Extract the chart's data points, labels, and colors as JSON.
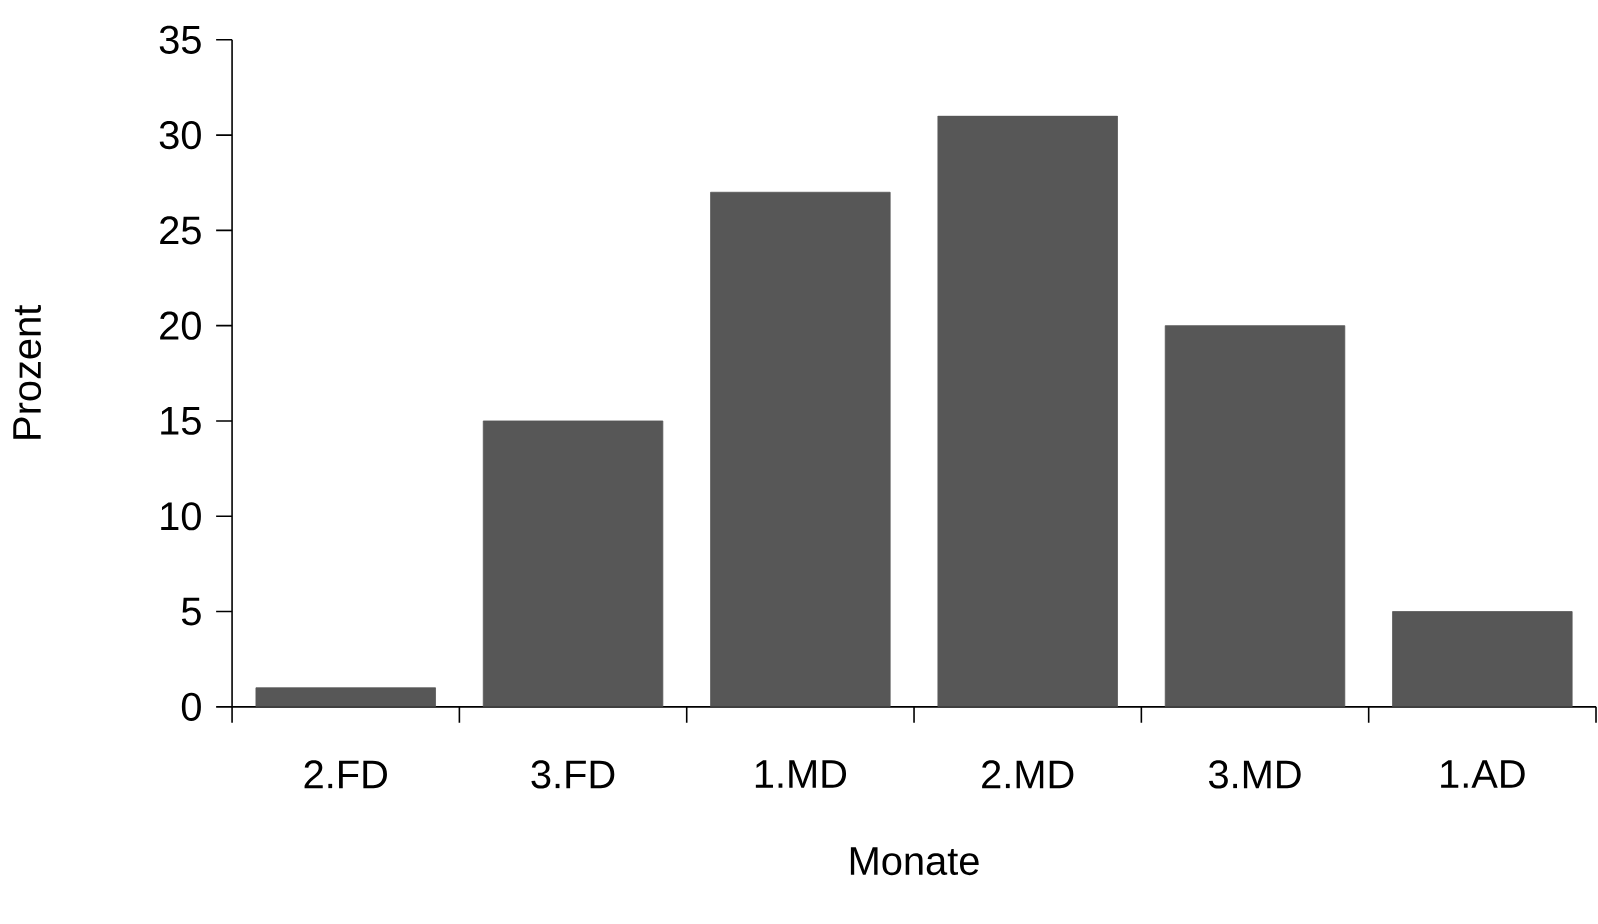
{
  "chart_data": {
    "type": "bar",
    "xlabel": "Monate",
    "ylabel": "Prozent",
    "categories": [
      "2.FD",
      "3.FD",
      "1.MD",
      "2.MD",
      "3.MD",
      "1.AD"
    ],
    "values": [
      1,
      15,
      27,
      31,
      20,
      5
    ],
    "color": "#575757",
    "ylim": [
      0,
      35
    ],
    "yticks": [
      0,
      5,
      10,
      15,
      20,
      25,
      30,
      35
    ],
    "grid": false
  }
}
